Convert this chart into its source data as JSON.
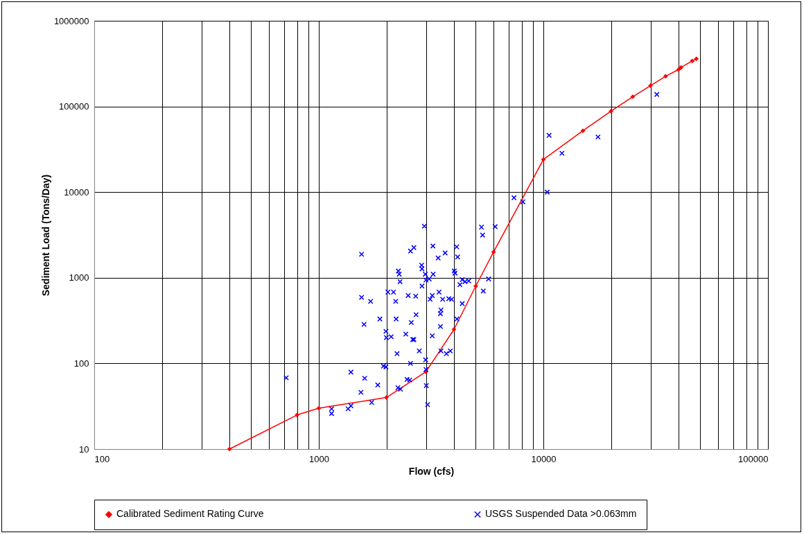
{
  "chart_data": {
    "type": "scatter",
    "xlabel": "Flow (cfs)",
    "ylabel": "Sediment Load (Tons/Day)",
    "log": "xy",
    "grid": true,
    "legend": "bottom",
    "xlim": [
      100,
      100000
    ],
    "ylim": [
      10,
      1000000
    ],
    "xticks": [
      100,
      {
        "value": 200,
        "label": null
      },
      {
        "value": 300,
        "label": null
      },
      {
        "value": 400,
        "label": null
      },
      {
        "value": 500,
        "label": null
      },
      {
        "value": 600,
        "label": null
      },
      {
        "value": 700,
        "label": null
      },
      {
        "value": 800,
        "label": null
      },
      {
        "value": 900,
        "label": null
      },
      1000,
      {
        "value": 2000,
        "label": null
      },
      {
        "value": 3000,
        "label": null
      },
      {
        "value": 4000,
        "label": null
      },
      {
        "value": 5000,
        "label": null
      },
      {
        "value": 6000,
        "label": null
      },
      {
        "value": 7000,
        "label": null
      },
      {
        "value": 8000,
        "label": null
      },
      {
        "value": 9000,
        "label": null
      },
      10000,
      {
        "value": 20000,
        "label": null
      },
      {
        "value": 30000,
        "label": null
      },
      {
        "value": 40000,
        "label": null
      },
      {
        "value": 50000,
        "label": null
      },
      {
        "value": 60000,
        "label": null
      },
      {
        "value": 70000,
        "label": null
      },
      {
        "value": 80000,
        "label": null
      },
      {
        "value": 90000,
        "label": null
      },
      100000
    ],
    "yticks": [
      10,
      100,
      1000,
      10000,
      100000,
      1000000
    ],
    "series": [
      {
        "name": "Calibrated Sediment Rating Curve",
        "type": "line",
        "marker": "diamond",
        "color": "#ff0000",
        "x": [
          400,
          800,
          1000,
          2000,
          3000,
          4000,
          5000,
          6000,
          10000,
          15000,
          20000,
          25000,
          30000,
          35000,
          40000,
          41000,
          46000,
          48000
        ],
        "values": [
          10,
          25,
          30,
          40,
          80,
          250,
          800,
          2000,
          24000,
          52000,
          88000,
          130000,
          175000,
          225000,
          270000,
          285000,
          340000,
          360000
        ]
      },
      {
        "name": "USGS Suspended Data >0.063mm",
        "type": "scatter",
        "marker": "cross",
        "color": "#0000ff",
        "x": [
          716,
          1140,
          1140,
          1350,
          1390,
          1390,
          1540,
          1550,
          1590,
          1550,
          1600,
          1700,
          1720,
          1830,
          1870,
          1940,
          1990,
          1990,
          2000,
          2030,
          2100,
          2150,
          2200,
          2210,
          2230,
          2260,
          2280,
          2300,
          2250,
          2310,
          2440,
          2470,
          2540,
          2500,
          2560,
          2650,
          2580,
          2560,
          2620,
          2650,
          2700,
          2710,
          2800,
          2870,
          2880,
          2880,
          2950,
          2980,
          3000,
          3100,
          3000,
          3010,
          3050,
          2990,
          3220,
          3130,
          3200,
          3230,
          3200,
          3400,
          3430,
          3480,
          3500,
          3480,
          3500,
          3560,
          3650,
          3700,
          3790,
          3850,
          3900,
          4010,
          4040,
          4110,
          4150,
          4120,
          4250,
          4350,
          4350,
          4480,
          4650,
          5300,
          5360,
          5400,
          5700,
          6100,
          7400,
          8100,
          10400,
          10600,
          12100,
          17500,
          32000
        ],
        "values": [
          68,
          26,
          29.5,
          29.5,
          32,
          79,
          46,
          590,
          285,
          1880,
          67,
          530,
          35,
          56,
          330,
          93,
          91,
          237,
          200,
          680,
          205,
          680,
          530,
          330,
          130,
          1200,
          1100,
          900,
          52,
          50,
          220,
          65,
          64,
          620,
          2050,
          2250,
          300,
          100,
          190,
          190,
          610,
          370,
          140,
          1400,
          1270,
          800,
          4000,
          1100,
          940,
          970,
          85,
          55,
          33,
          110,
          2350,
          560,
          620,
          1100,
          210,
          1700,
          680,
          380,
          420,
          270,
          140,
          560,
          1950,
          130,
          570,
          140,
          560,
          1200,
          1130,
          2300,
          1750,
          330,
          830,
          950,
          500,
          900,
          920,
          3900,
          3150,
          700,
          970,
          3950,
          8600,
          7700,
          10000,
          46000,
          28400,
          44000,
          138000
        ]
      }
    ]
  }
}
